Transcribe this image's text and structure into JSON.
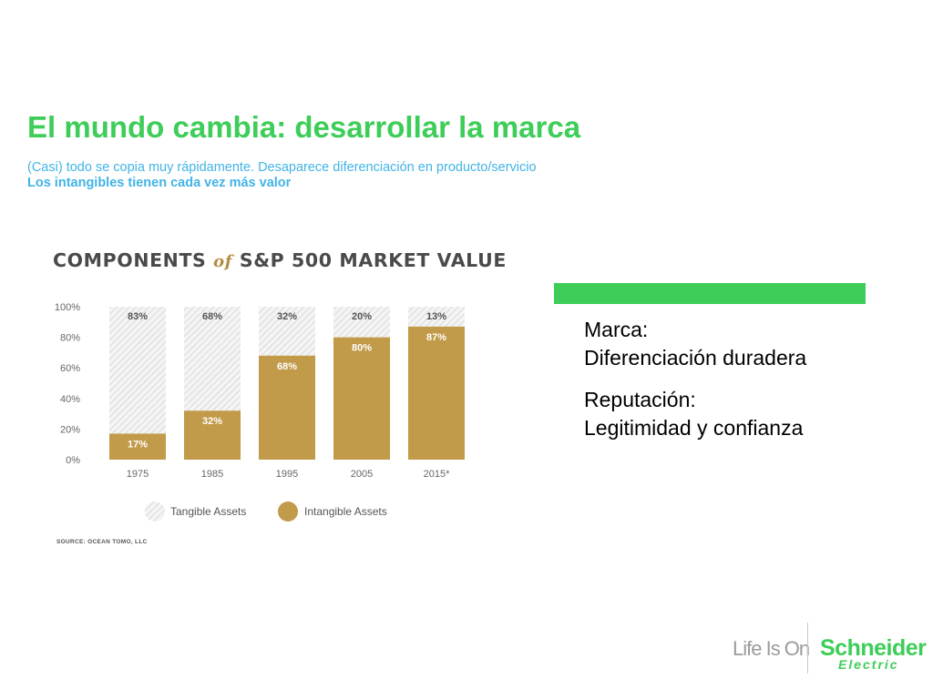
{
  "slide": {
    "title": "El mundo cambia: desarrollar la marca",
    "subtitle_line1": "(Casi) todo se copia muy rápidamente. Desaparece diferenciación en producto/servicio",
    "subtitle_line2": "Los intangibles tienen cada vez más valor"
  },
  "chart_image": {
    "title_part1": "COMPONENTS",
    "title_of": "of",
    "title_part2": "S&P 500 MARKET VALUE",
    "source": "SOURCE: OCEAN TOMO, LLC"
  },
  "chart_data": {
    "type": "bar",
    "stacked": true,
    "categories": [
      "1975",
      "1985",
      "1995",
      "2005",
      "2015*"
    ],
    "series": [
      {
        "name": "Tangible Assets",
        "values": [
          83,
          68,
          32,
          20,
          13
        ],
        "labels": [
          "83%",
          "68%",
          "32%",
          "20%",
          "13%"
        ]
      },
      {
        "name": "Intangible Assets",
        "values": [
          17,
          32,
          68,
          80,
          87
        ],
        "labels": [
          "17%",
          "32%",
          "68%",
          "80%",
          "87%"
        ]
      }
    ],
    "yticks": [
      "0%",
      "20%",
      "40%",
      "60%",
      "80%",
      "100%"
    ],
    "ylim": [
      0,
      100
    ],
    "legend_position": "bottom",
    "colors": {
      "intangible": "#c19a4a",
      "tangible_hatch": "#d9d9d9",
      "tick_text": "#666666"
    }
  },
  "panel": {
    "block1_line1": "Marca:",
    "block1_line2": "Diferenciación duradera",
    "block2_line1": "Reputación:",
    "block2_line2": "Legitimidad y confianza"
  },
  "brand": {
    "tagline": "Life Is On",
    "name": "Schneider",
    "sub": "Electric",
    "color": "#3dcd58"
  }
}
